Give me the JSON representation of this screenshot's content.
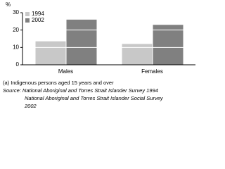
{
  "chart_data": {
    "type": "bar",
    "y_label": "%",
    "categories": [
      "Males",
      "Females"
    ],
    "series": [
      {
        "name": "1994",
        "color": "#c8c8c8",
        "values": [
          13.5,
          12
        ]
      },
      {
        "name": "2002",
        "color": "#808080",
        "values": [
          26,
          23
        ]
      }
    ],
    "ylim": [
      0,
      30
    ],
    "yticks": [
      0,
      10,
      20,
      30
    ],
    "grid": true,
    "legend": "top-left",
    "notes": [
      "(a) Indigenous persons aged 15 years and over",
      "Source: National Aboriginal and Torres Strait Islander Survey 1994",
      "National Aboriginal and Torres Strait Islander Social Survey",
      "2002"
    ]
  }
}
